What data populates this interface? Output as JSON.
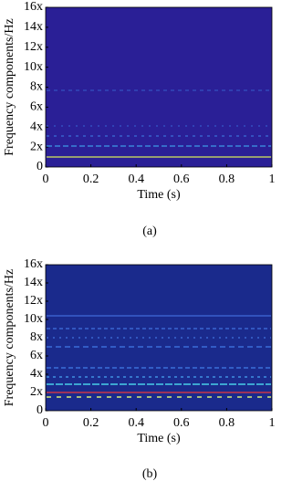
{
  "chart_data": [
    {
      "type": "heatmap",
      "ylabel": "Frequency components/Hz",
      "xlabel": "Time (s)",
      "caption": "(a)",
      "xlim": [
        0,
        1
      ],
      "xticks": [
        0,
        0.2,
        0.4,
        0.6,
        0.8,
        1
      ],
      "ylim": [
        0,
        16
      ],
      "yticks": [
        0,
        {
          "value": 2,
          "label": "2x"
        },
        {
          "value": 4,
          "label": "4x"
        },
        {
          "value": 6,
          "label": "6x"
        },
        {
          "value": 8,
          "label": "8x"
        },
        {
          "value": 10,
          "label": "10x"
        },
        {
          "value": 12,
          "label": "12x"
        },
        {
          "value": 14,
          "label": "14x"
        },
        {
          "value": 16,
          "label": "16x"
        }
      ],
      "color": "#2a1f96"
    },
    {
      "type": "heatmap",
      "ylabel": "Frequency components/Hz",
      "xlabel": "Time (s)",
      "caption": "(b)",
      "xlim": [
        0,
        1
      ],
      "xticks": [
        0,
        0.2,
        0.4,
        0.6,
        0.8,
        1
      ],
      "ylim": [
        0,
        16
      ],
      "yticks": [
        0,
        {
          "value": 2,
          "label": "2x"
        },
        {
          "value": 4,
          "label": "4x"
        },
        {
          "value": 6,
          "label": "6x"
        },
        {
          "value": 8,
          "label": "8x"
        },
        {
          "value": 10,
          "label": "10x"
        },
        {
          "value": 12,
          "label": "12x"
        },
        {
          "value": 14,
          "label": "14x"
        },
        {
          "value": 16,
          "label": "16x"
        }
      ],
      "color": "#1a2a8c"
    }
  ]
}
